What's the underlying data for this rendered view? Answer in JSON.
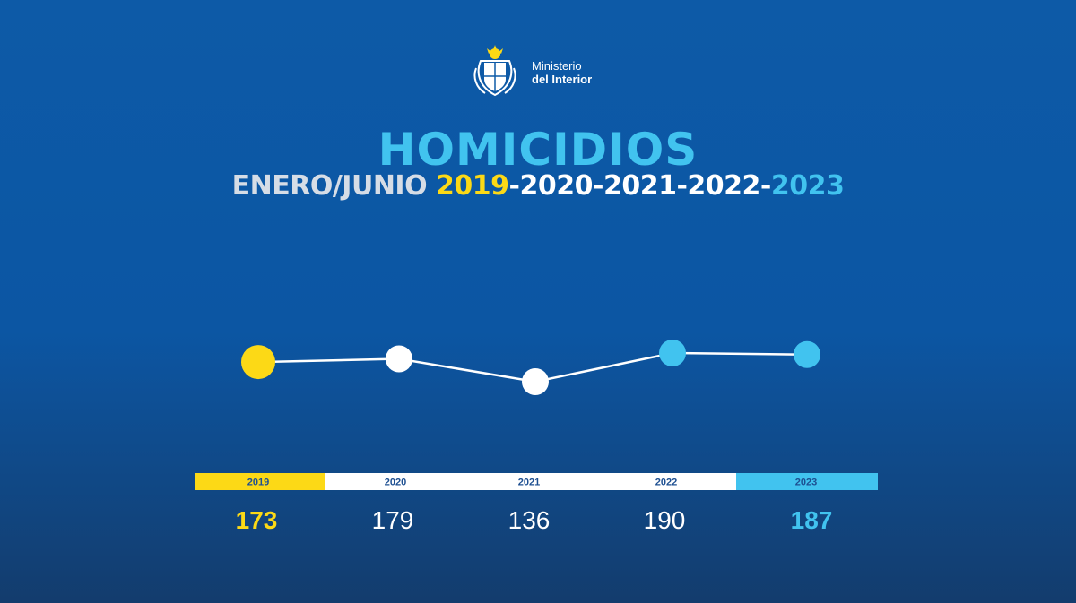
{
  "header": {
    "logo_line1": "Ministerio",
    "logo_line2": "del Interior"
  },
  "colors": {
    "yellow": "#fcd916",
    "white": "#ffffff",
    "cyan": "#41c3ef",
    "subtitle_grey": "#d6dde6",
    "bar_text": "#1d4f91"
  },
  "chart_data": {
    "type": "line",
    "title": "HOMICIDIOS",
    "subtitle_parts": [
      {
        "text": "ENERO/JUNIO ",
        "color": "#d6dde6"
      },
      {
        "text": "2019",
        "color": "#fcd916"
      },
      {
        "text": "-2020-2021-2022-",
        "color": "#ffffff"
      },
      {
        "text": "2023",
        "color": "#41c3ef"
      }
    ],
    "categories": [
      "2019",
      "2020",
      "2021",
      "2022",
      "2023"
    ],
    "values": [
      173,
      179,
      136,
      190,
      187
    ],
    "value_labels": [
      "173",
      "179",
      "136",
      "190",
      "187"
    ],
    "point_colors": [
      "#fcd916",
      "#ffffff",
      "#ffffff",
      "#41c3ef",
      "#41c3ef"
    ],
    "band_colors": [
      "#fcd916",
      "#ffffff",
      "#ffffff",
      "#ffffff",
      "#41c3ef"
    ],
    "value_colors": [
      "#fcd916",
      "#ffffff",
      "#ffffff",
      "#ffffff",
      "#41c3ef"
    ],
    "grid": false
  }
}
